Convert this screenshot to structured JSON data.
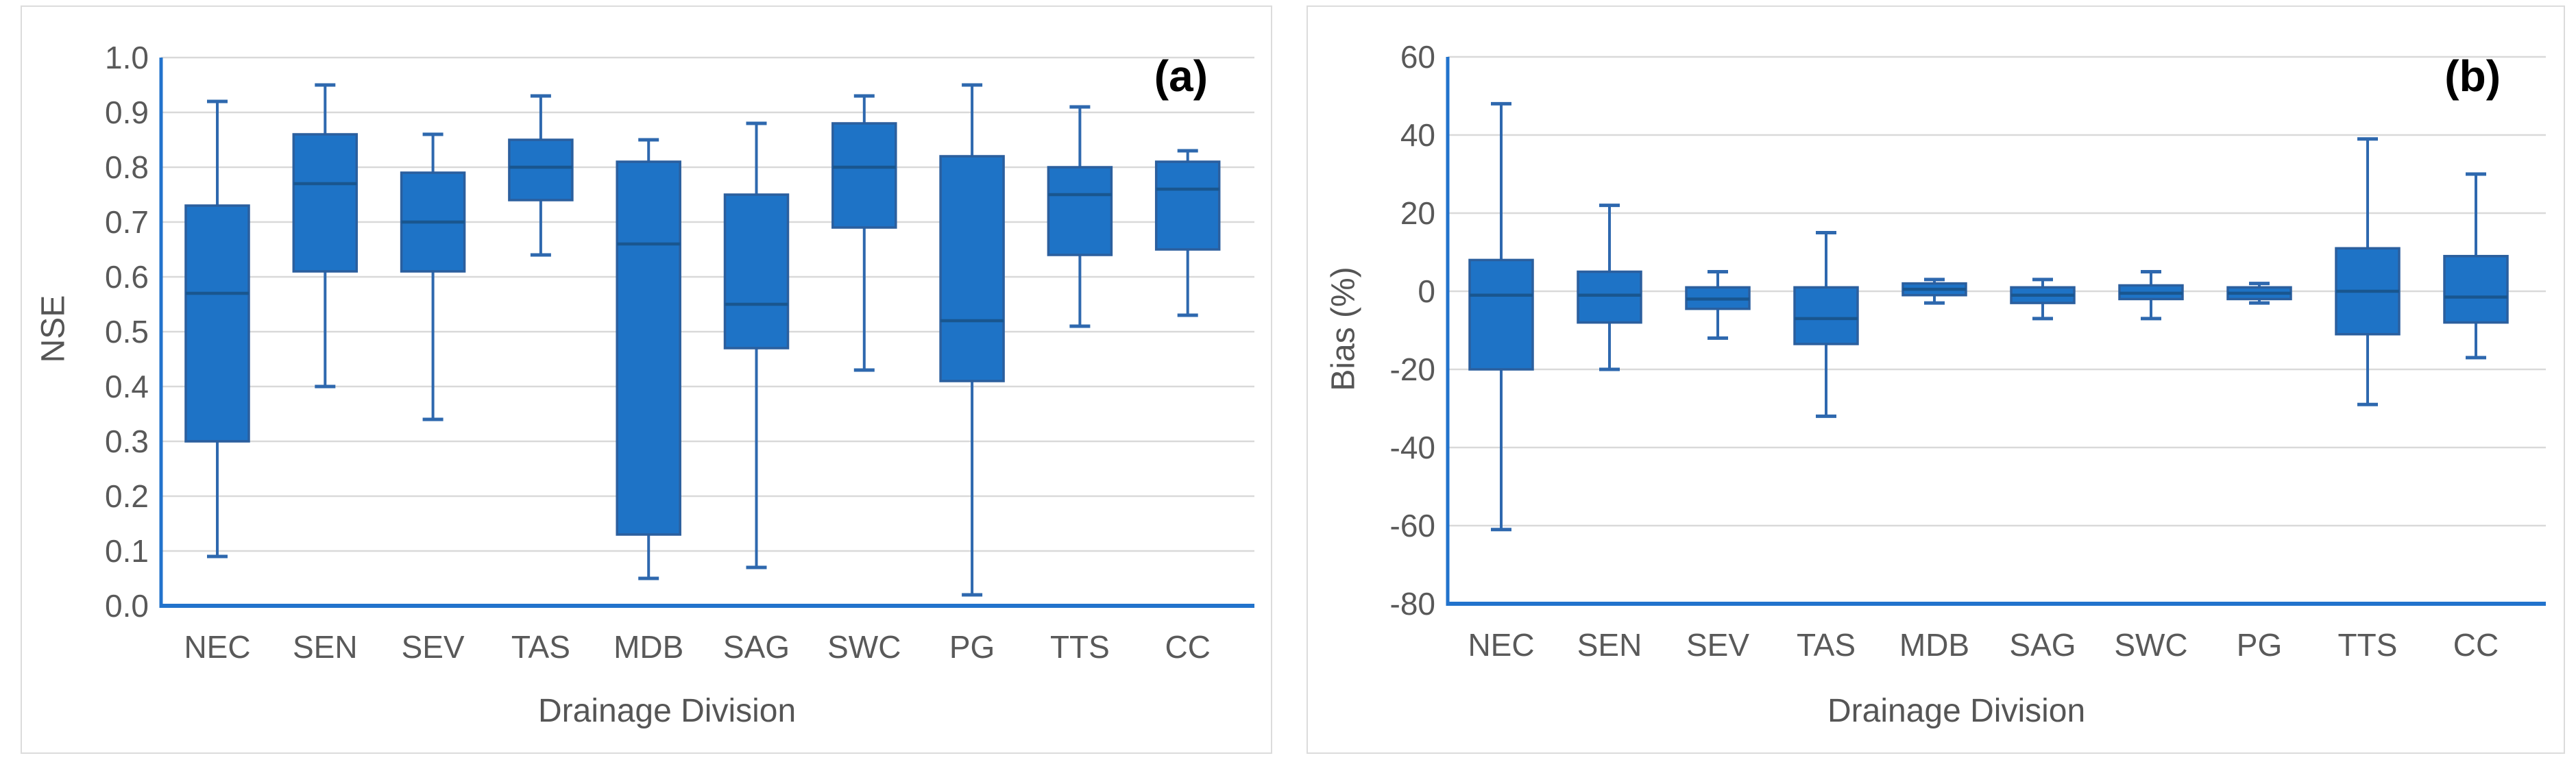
{
  "page": {
    "background": "#ffffff"
  },
  "colors": {
    "box_fill": "#1e73c6",
    "box_stroke": "#2b5f9e",
    "median_line": "#19568f",
    "whisker": "#2e68ae",
    "axis_line": "#2273cc",
    "gridline": "#d9d9d9",
    "tick_text": "#595959",
    "panel_border": "#dcdcdc"
  },
  "chart_data": [
    {
      "type": "boxplot",
      "panel_label": "(a)",
      "ylabel": "NSE",
      "xlabel": "Drainage Division",
      "legend": "none",
      "grid": true,
      "ylim": [
        0.0,
        1.0
      ],
      "yticks": [
        {
          "v": 0.0,
          "label": "0.0"
        },
        {
          "v": 0.1,
          "label": "0.1"
        },
        {
          "v": 0.2,
          "label": "0.2"
        },
        {
          "v": 0.3,
          "label": "0.3"
        },
        {
          "v": 0.4,
          "label": "0.4"
        },
        {
          "v": 0.5,
          "label": "0.5"
        },
        {
          "v": 0.6,
          "label": "0.6"
        },
        {
          "v": 0.7,
          "label": "0.7"
        },
        {
          "v": 0.8,
          "label": "0.8"
        },
        {
          "v": 0.9,
          "label": "0.9"
        },
        {
          "v": 1.0,
          "label": "1.0"
        }
      ],
      "categories": [
        "NEC",
        "SEN",
        "SEV",
        "TAS",
        "MDB",
        "SAG",
        "SWC",
        "PG",
        "TTS",
        "CC"
      ],
      "series": [
        {
          "name": "NSE",
          "boxes": [
            {
              "low": 0.09,
              "q1": 0.3,
              "median": 0.57,
              "q3": 0.73,
              "high": 0.92
            },
            {
              "low": 0.4,
              "q1": 0.61,
              "median": 0.77,
              "q3": 0.86,
              "high": 0.95
            },
            {
              "low": 0.34,
              "q1": 0.61,
              "median": 0.7,
              "q3": 0.79,
              "high": 0.86
            },
            {
              "low": 0.64,
              "q1": 0.74,
              "median": 0.8,
              "q3": 0.85,
              "high": 0.93
            },
            {
              "low": 0.05,
              "q1": 0.13,
              "median": 0.66,
              "q3": 0.81,
              "high": 0.85
            },
            {
              "low": 0.07,
              "q1": 0.47,
              "median": 0.55,
              "q3": 0.75,
              "high": 0.88
            },
            {
              "low": 0.43,
              "q1": 0.69,
              "median": 0.8,
              "q3": 0.88,
              "high": 0.93
            },
            {
              "low": 0.02,
              "q1": 0.41,
              "median": 0.52,
              "q3": 0.82,
              "high": 0.95
            },
            {
              "low": 0.51,
              "q1": 0.64,
              "median": 0.75,
              "q3": 0.8,
              "high": 0.91
            },
            {
              "low": 0.53,
              "q1": 0.65,
              "median": 0.76,
              "q3": 0.81,
              "high": 0.83
            }
          ]
        }
      ]
    },
    {
      "type": "boxplot",
      "panel_label": "(b)",
      "ylabel": "Bias (%)",
      "xlabel": "Drainage Division",
      "legend": "none",
      "grid": true,
      "ylim": [
        -80,
        60
      ],
      "yticks": [
        {
          "v": -80,
          "label": "-80"
        },
        {
          "v": -60,
          "label": "-60"
        },
        {
          "v": -40,
          "label": "-40"
        },
        {
          "v": -20,
          "label": "-20"
        },
        {
          "v": 0,
          "label": "0"
        },
        {
          "v": 20,
          "label": "20"
        },
        {
          "v": 40,
          "label": "40"
        },
        {
          "v": 60,
          "label": "60"
        }
      ],
      "categories": [
        "NEC",
        "SEN",
        "SEV",
        "TAS",
        "MDB",
        "SAG",
        "SWC",
        "PG",
        "TTS",
        "CC"
      ],
      "series": [
        {
          "name": "Bias (%)",
          "boxes": [
            {
              "low": -61,
              "q1": -20,
              "median": -1,
              "q3": 8,
              "high": 48
            },
            {
              "low": -20,
              "q1": -8,
              "median": -1,
              "q3": 5,
              "high": 22
            },
            {
              "low": -12,
              "q1": -4.5,
              "median": -2,
              "q3": 1,
              "high": 5
            },
            {
              "low": -32,
              "q1": -13.5,
              "median": -7,
              "q3": 1,
              "high": 15
            },
            {
              "low": -3,
              "q1": -1,
              "median": 0.5,
              "q3": 2,
              "high": 3
            },
            {
              "low": -7,
              "q1": -3,
              "median": -1,
              "q3": 1,
              "high": 3
            },
            {
              "low": -7,
              "q1": -2,
              "median": -0.5,
              "q3": 1.5,
              "high": 5
            },
            {
              "low": -3,
              "q1": -2,
              "median": -0.5,
              "q3": 1,
              "high": 2
            },
            {
              "low": -29,
              "q1": -11,
              "median": 0,
              "q3": 11,
              "high": 39
            },
            {
              "low": -17,
              "q1": -8,
              "median": -1.5,
              "q3": 9,
              "high": 30
            }
          ]
        }
      ]
    }
  ]
}
